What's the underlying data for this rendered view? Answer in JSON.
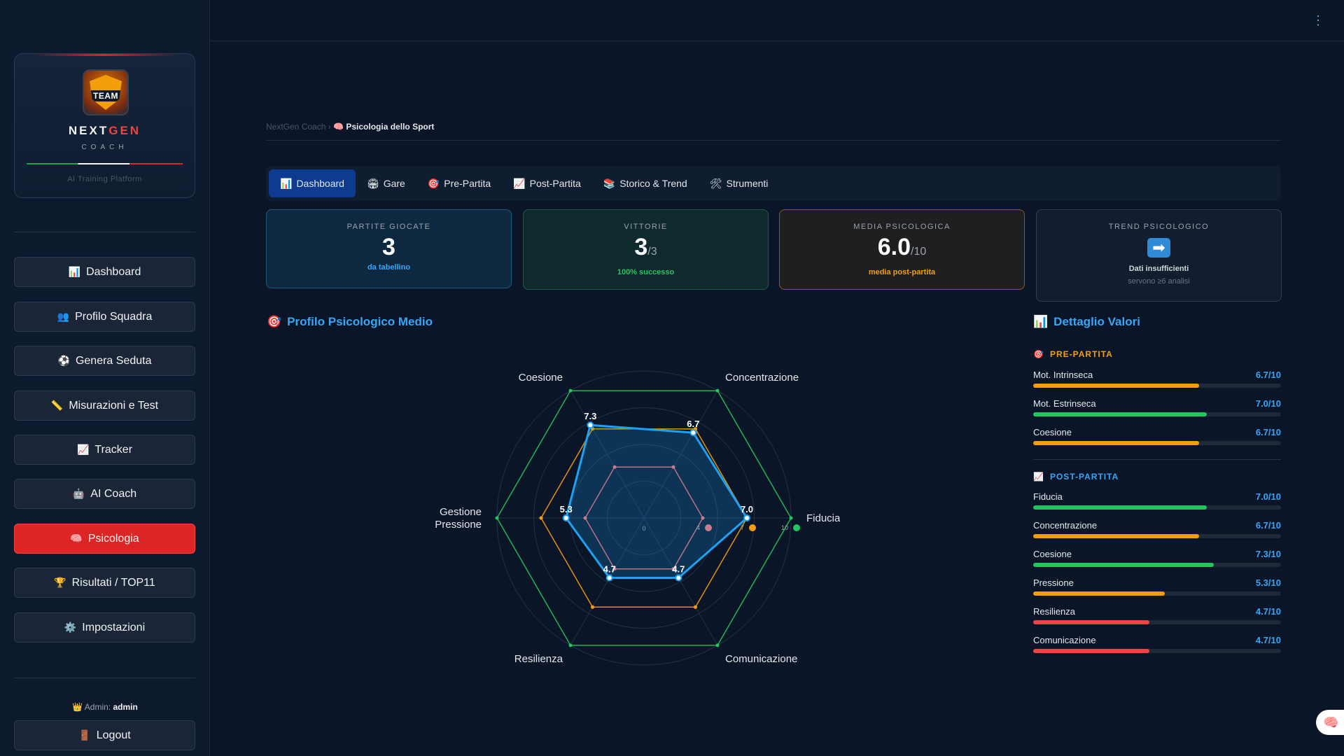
{
  "brand": {
    "name_a": "NEXT",
    "name_b": "GEN",
    "sub": "COACH",
    "tagline": "AI Training Platform",
    "logo_text": "TEAM"
  },
  "nav": [
    {
      "icon": "📊",
      "label": "Dashboard"
    },
    {
      "icon": "👥",
      "label": "Profilo Squadra"
    },
    {
      "icon": "⚽",
      "label": "Genera Seduta"
    },
    {
      "icon": "📏",
      "label": "Misurazioni e Test"
    },
    {
      "icon": "📈",
      "label": "Tracker"
    },
    {
      "icon": "🤖",
      "label": "AI Coach"
    },
    {
      "icon": "🧠",
      "label": "Psicologia"
    },
    {
      "icon": "🏆",
      "label": "Risultati / TOP11"
    },
    {
      "icon": "⚙️",
      "label": "Impostazioni"
    }
  ],
  "user": {
    "prefix": "Admin:",
    "name": "admin",
    "logout": "Logout"
  },
  "breadcrumb": {
    "root": "NextGen Coach",
    "sep": "›",
    "current": "Psicologia dello Sport"
  },
  "tabs": [
    {
      "icon": "📊",
      "label": "Dashboard"
    },
    {
      "icon": "🏟",
      "label": "Gare"
    },
    {
      "icon": "🎯",
      "label": "Pre-Partita"
    },
    {
      "icon": "📈",
      "label": "Post-Partita"
    },
    {
      "icon": "📚",
      "label": "Storico & Trend"
    },
    {
      "icon": "🛠",
      "label": "Strumenti"
    }
  ],
  "kpis": {
    "played": {
      "label": "PARTITE GIOCATE",
      "value": "3",
      "sub": "da tabellino",
      "sub_color": "#38a5f5"
    },
    "wins": {
      "label": "VITTORIE",
      "value": "3",
      "suffix": "/3",
      "sub": "100% successo",
      "sub_color": "#22c55e"
    },
    "avg": {
      "label": "MEDIA PSICOLOGICA",
      "value": "6.0",
      "suffix": "/10",
      "sub": "media post-partita",
      "sub_color": "#f59e0b"
    },
    "trend": {
      "label": "TREND PSICOLOGICO",
      "icon": "➡",
      "sub": "Dati insufficienti",
      "sub2": "servono ≥6 analisi"
    }
  },
  "radar_title": {
    "icon": "🎯",
    "text": "Profilo Psicologico Medio"
  },
  "details_title": {
    "icon": "📊",
    "text": "Dettaglio Valori"
  },
  "chart_data": {
    "type": "radar",
    "axes": [
      "Fiducia",
      "Concentrazione",
      "Coesione",
      "Gestione Pressione",
      "Resilienza",
      "Comunicazione"
    ],
    "axis_label_lines": [
      [
        "Fiducia"
      ],
      [
        "Concentrazione"
      ],
      [
        "Coesione"
      ],
      [
        "Gestione",
        "Pressione"
      ],
      [
        "Resilienza"
      ],
      [
        "Comunicazione"
      ]
    ],
    "rmax": 10,
    "reference_rings": [
      {
        "value": 10,
        "color": "#22c55e",
        "tick_label": "10"
      },
      {
        "value": 7,
        "color": "#f59e0b",
        "tick_label": "7"
      },
      {
        "value": 4,
        "color": "#f87171",
        "tick_label": "4"
      }
    ],
    "center_label": "0",
    "series": [
      {
        "values": [
          7.0,
          6.7,
          7.3,
          5.3,
          4.7,
          4.7
        ],
        "labels": [
          "7.0",
          "6.7",
          "7.3",
          "5.3",
          "4.7",
          "4.7"
        ],
        "color": "#1da1f2"
      }
    ]
  },
  "details": {
    "pre": {
      "icon": "🎯",
      "title": "PRE-PARTITA",
      "title_color": "#f59e0b",
      "rows": [
        {
          "label": "Mot. Intrinseca",
          "value": "6.7/10",
          "fraction": 0.67,
          "color": "#f59e0b"
        },
        {
          "label": "Mot. Estrinseca",
          "value": "7.0/10",
          "fraction": 0.7,
          "color": "#22c55e"
        },
        {
          "label": "Coesione",
          "value": "6.7/10",
          "fraction": 0.67,
          "color": "#f59e0b"
        }
      ]
    },
    "post": {
      "icon": "📈",
      "title": "POST-PARTITA",
      "title_color": "#38a5f5",
      "rows": [
        {
          "label": "Fiducia",
          "value": "7.0/10",
          "fraction": 0.7,
          "color": "#22c55e"
        },
        {
          "label": "Concentrazione",
          "value": "6.7/10",
          "fraction": 0.67,
          "color": "#f59e0b"
        },
        {
          "label": "Coesione",
          "value": "7.3/10",
          "fraction": 0.73,
          "color": "#22c55e"
        },
        {
          "label": "Pressione",
          "value": "5.3/10",
          "fraction": 0.53,
          "color": "#f59e0b"
        },
        {
          "label": "Resilienza",
          "value": "4.7/10",
          "fraction": 0.47,
          "color": "#ef4444"
        },
        {
          "label": "Comunicazione",
          "value": "4.7/10",
          "fraction": 0.47,
          "color": "#ef4444"
        }
      ]
    }
  },
  "float_icon": "🧠",
  "kebab_icon": "⋮"
}
